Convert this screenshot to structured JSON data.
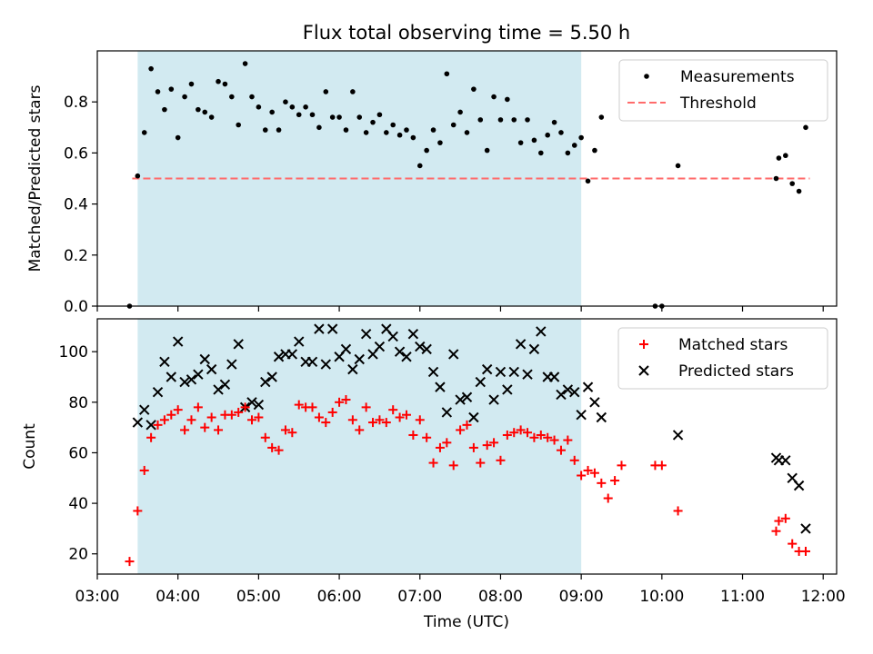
{
  "figure": {
    "title": "Flux total observing time = 5.50 h",
    "xlabel": "Time (UTC)",
    "x_ticks": [
      "03:00",
      "04:00",
      "05:00",
      "06:00",
      "07:00",
      "08:00",
      "09:00",
      "10:00",
      "11:00",
      "12:00"
    ]
  },
  "colors": {
    "shade": "#add8e6",
    "threshold": "#ff6b6b",
    "measurements": "#000000",
    "matched": "#ff0000",
    "predicted": "#000000"
  },
  "chart_data": [
    {
      "type": "scatter",
      "ylabel": "Matched/Predicted stars",
      "xlim": [
        "03:00",
        "12:10"
      ],
      "ylim": [
        0,
        1.0
      ],
      "y_ticks": [
        "0.0",
        "0.2",
        "0.4",
        "0.6",
        "0.8"
      ],
      "legend_position": "top-right",
      "observing_window": [
        "03:30",
        "09:00"
      ],
      "threshold": {
        "name": "Threshold",
        "value": 0.5,
        "x_range": [
          "03:26",
          "11:50"
        ]
      },
      "series": [
        {
          "name": "Measurements",
          "points": [
            [
              "03:24",
              0.0
            ],
            [
              "03:30",
              0.51
            ],
            [
              "03:35",
              0.68
            ],
            [
              "03:40",
              0.93
            ],
            [
              "03:45",
              0.84
            ],
            [
              "03:50",
              0.77
            ],
            [
              "03:55",
              0.85
            ],
            [
              "04:00",
              0.66
            ],
            [
              "04:05",
              0.82
            ],
            [
              "04:10",
              0.87
            ],
            [
              "04:15",
              0.77
            ],
            [
              "04:20",
              0.76
            ],
            [
              "04:25",
              0.74
            ],
            [
              "04:30",
              0.88
            ],
            [
              "04:35",
              0.87
            ],
            [
              "04:40",
              0.82
            ],
            [
              "04:45",
              0.71
            ],
            [
              "04:50",
              0.95
            ],
            [
              "04:55",
              0.82
            ],
            [
              "05:00",
              0.78
            ],
            [
              "05:05",
              0.69
            ],
            [
              "05:10",
              0.76
            ],
            [
              "05:15",
              0.69
            ],
            [
              "05:20",
              0.8
            ],
            [
              "05:25",
              0.78
            ],
            [
              "05:30",
              0.75
            ],
            [
              "05:35",
              0.78
            ],
            [
              "05:40",
              0.75
            ],
            [
              "05:45",
              0.7
            ],
            [
              "05:50",
              0.84
            ],
            [
              "05:55",
              0.74
            ],
            [
              "06:00",
              0.74
            ],
            [
              "06:05",
              0.69
            ],
            [
              "06:10",
              0.84
            ],
            [
              "06:15",
              0.74
            ],
            [
              "06:20",
              0.68
            ],
            [
              "06:25",
              0.72
            ],
            [
              "06:30",
              0.75
            ],
            [
              "06:35",
              0.68
            ],
            [
              "06:40",
              0.71
            ],
            [
              "06:45",
              0.67
            ],
            [
              "06:50",
              0.69
            ],
            [
              "06:55",
              0.66
            ],
            [
              "07:00",
              0.55
            ],
            [
              "07:05",
              0.61
            ],
            [
              "07:10",
              0.69
            ],
            [
              "07:15",
              0.64
            ],
            [
              "07:20",
              0.91
            ],
            [
              "07:25",
              0.71
            ],
            [
              "07:30",
              0.76
            ],
            [
              "07:35",
              0.68
            ],
            [
              "07:40",
              0.85
            ],
            [
              "07:45",
              0.73
            ],
            [
              "07:50",
              0.61
            ],
            [
              "07:55",
              0.82
            ],
            [
              "08:00",
              0.73
            ],
            [
              "08:05",
              0.81
            ],
            [
              "08:10",
              0.73
            ],
            [
              "08:15",
              0.64
            ],
            [
              "08:20",
              0.73
            ],
            [
              "08:25",
              0.65
            ],
            [
              "08:30",
              0.6
            ],
            [
              "08:35",
              0.67
            ],
            [
              "08:40",
              0.72
            ],
            [
              "08:45",
              0.68
            ],
            [
              "08:50",
              0.6
            ],
            [
              "08:55",
              0.63
            ],
            [
              "09:00",
              0.66
            ],
            [
              "09:05",
              0.49
            ],
            [
              "09:10",
              0.61
            ],
            [
              "09:15",
              0.74
            ],
            [
              "09:55",
              0.0
            ],
            [
              "10:00",
              0.0
            ],
            [
              "10:12",
              0.55
            ],
            [
              "11:25",
              0.5
            ],
            [
              "11:27",
              0.58
            ],
            [
              "11:32",
              0.59
            ],
            [
              "11:37",
              0.48
            ],
            [
              "11:42",
              0.45
            ],
            [
              "11:47",
              0.7
            ]
          ]
        }
      ]
    },
    {
      "type": "scatter",
      "ylabel": "Count",
      "xlim": [
        "03:00",
        "12:10"
      ],
      "ylim": [
        12,
        113
      ],
      "y_ticks": [
        "20",
        "40",
        "60",
        "80",
        "100"
      ],
      "legend_position": "top-right",
      "observing_window": [
        "03:30",
        "09:00"
      ],
      "series": [
        {
          "name": "Matched stars",
          "points": [
            [
              "03:24",
              17
            ],
            [
              "03:30",
              37
            ],
            [
              "03:35",
              53
            ],
            [
              "03:40",
              66
            ],
            [
              "03:45",
              71
            ],
            [
              "03:50",
              73
            ],
            [
              "03:55",
              75
            ],
            [
              "04:00",
              77
            ],
            [
              "04:05",
              69
            ],
            [
              "04:10",
              73
            ],
            [
              "04:15",
              78
            ],
            [
              "04:20",
              70
            ],
            [
              "04:25",
              74
            ],
            [
              "04:30",
              69
            ],
            [
              "04:35",
              75
            ],
            [
              "04:40",
              75
            ],
            [
              "04:45",
              76
            ],
            [
              "04:50",
              78
            ],
            [
              "04:55",
              73
            ],
            [
              "05:00",
              74
            ],
            [
              "05:05",
              66
            ],
            [
              "05:10",
              62
            ],
            [
              "05:15",
              61
            ],
            [
              "05:20",
              69
            ],
            [
              "05:25",
              68
            ],
            [
              "05:30",
              79
            ],
            [
              "05:35",
              78
            ],
            [
              "05:40",
              78
            ],
            [
              "05:45",
              74
            ],
            [
              "05:50",
              72
            ],
            [
              "05:55",
              76
            ],
            [
              "06:00",
              80
            ],
            [
              "06:05",
              81
            ],
            [
              "06:10",
              73
            ],
            [
              "06:15",
              69
            ],
            [
              "06:20",
              78
            ],
            [
              "06:25",
              72
            ],
            [
              "06:30",
              73
            ],
            [
              "06:35",
              72
            ],
            [
              "06:40",
              77
            ],
            [
              "06:45",
              74
            ],
            [
              "06:50",
              75
            ],
            [
              "06:55",
              67
            ],
            [
              "07:00",
              73
            ],
            [
              "07:05",
              66
            ],
            [
              "07:10",
              56
            ],
            [
              "07:15",
              62
            ],
            [
              "07:20",
              64
            ],
            [
              "07:25",
              55
            ],
            [
              "07:30",
              69
            ],
            [
              "07:35",
              71
            ],
            [
              "07:40",
              62
            ],
            [
              "07:45",
              56
            ],
            [
              "07:50",
              63
            ],
            [
              "07:55",
              64
            ],
            [
              "08:00",
              57
            ],
            [
              "08:05",
              67
            ],
            [
              "08:10",
              68
            ],
            [
              "08:15",
              69
            ],
            [
              "08:20",
              68
            ],
            [
              "08:25",
              66
            ],
            [
              "08:30",
              67
            ],
            [
              "08:35",
              66
            ],
            [
              "08:40",
              65
            ],
            [
              "08:45",
              61
            ],
            [
              "08:50",
              65
            ],
            [
              "08:55",
              57
            ],
            [
              "09:00",
              51
            ],
            [
              "09:05",
              53
            ],
            [
              "09:10",
              52
            ],
            [
              "09:15",
              48
            ],
            [
              "09:20",
              42
            ],
            [
              "09:25",
              49
            ],
            [
              "09:30",
              55
            ],
            [
              "09:55",
              55
            ],
            [
              "10:00",
              55
            ],
            [
              "10:12",
              37
            ],
            [
              "11:25",
              29
            ],
            [
              "11:27",
              33
            ],
            [
              "11:32",
              34
            ],
            [
              "11:37",
              24
            ],
            [
              "11:42",
              21
            ],
            [
              "11:47",
              21
            ]
          ]
        },
        {
          "name": "Predicted stars",
          "points": [
            [
              "03:30",
              72
            ],
            [
              "03:35",
              77
            ],
            [
              "03:40",
              71
            ],
            [
              "03:45",
              84
            ],
            [
              "03:50",
              96
            ],
            [
              "03:55",
              90
            ],
            [
              "04:00",
              104
            ],
            [
              "04:05",
              88
            ],
            [
              "04:10",
              89
            ],
            [
              "04:15",
              91
            ],
            [
              "04:20",
              97
            ],
            [
              "04:25",
              93
            ],
            [
              "04:30",
              85
            ],
            [
              "04:35",
              87
            ],
            [
              "04:40",
              95
            ],
            [
              "04:45",
              103
            ],
            [
              "04:50",
              78
            ],
            [
              "04:55",
              80
            ],
            [
              "05:00",
              79
            ],
            [
              "05:05",
              88
            ],
            [
              "05:10",
              90
            ],
            [
              "05:15",
              98
            ],
            [
              "05:20",
              99
            ],
            [
              "05:25",
              99
            ],
            [
              "05:30",
              104
            ],
            [
              "05:35",
              96
            ],
            [
              "05:40",
              96
            ],
            [
              "05:45",
              109
            ],
            [
              "05:50",
              95
            ],
            [
              "05:55",
              109
            ],
            [
              "06:00",
              98
            ],
            [
              "06:05",
              101
            ],
            [
              "06:10",
              93
            ],
            [
              "06:15",
              97
            ],
            [
              "06:20",
              107
            ],
            [
              "06:25",
              99
            ],
            [
              "06:30",
              102
            ],
            [
              "06:35",
              109
            ],
            [
              "06:40",
              106
            ],
            [
              "06:45",
              100
            ],
            [
              "06:50",
              98
            ],
            [
              "06:55",
              107
            ],
            [
              "07:00",
              102
            ],
            [
              "07:05",
              101
            ],
            [
              "07:10",
              92
            ],
            [
              "07:15",
              86
            ],
            [
              "07:20",
              76
            ],
            [
              "07:25",
              99
            ],
            [
              "07:30",
              81
            ],
            [
              "07:35",
              82
            ],
            [
              "07:40",
              74
            ],
            [
              "07:45",
              88
            ],
            [
              "07:50",
              93
            ],
            [
              "07:55",
              81
            ],
            [
              "08:00",
              92
            ],
            [
              "08:05",
              85
            ],
            [
              "08:10",
              92
            ],
            [
              "08:15",
              103
            ],
            [
              "08:20",
              91
            ],
            [
              "08:25",
              101
            ],
            [
              "08:30",
              108
            ],
            [
              "08:35",
              90
            ],
            [
              "08:40",
              90
            ],
            [
              "08:45",
              83
            ],
            [
              "08:50",
              85
            ],
            [
              "08:55",
              84
            ],
            [
              "09:00",
              75
            ],
            [
              "09:05",
              86
            ],
            [
              "09:10",
              80
            ],
            [
              "09:15",
              74
            ],
            [
              "10:12",
              67
            ],
            [
              "11:25",
              58
            ],
            [
              "11:27",
              57
            ],
            [
              "11:32",
              57
            ],
            [
              "11:37",
              50
            ],
            [
              "11:42",
              47
            ],
            [
              "11:47",
              30
            ]
          ]
        }
      ]
    }
  ]
}
